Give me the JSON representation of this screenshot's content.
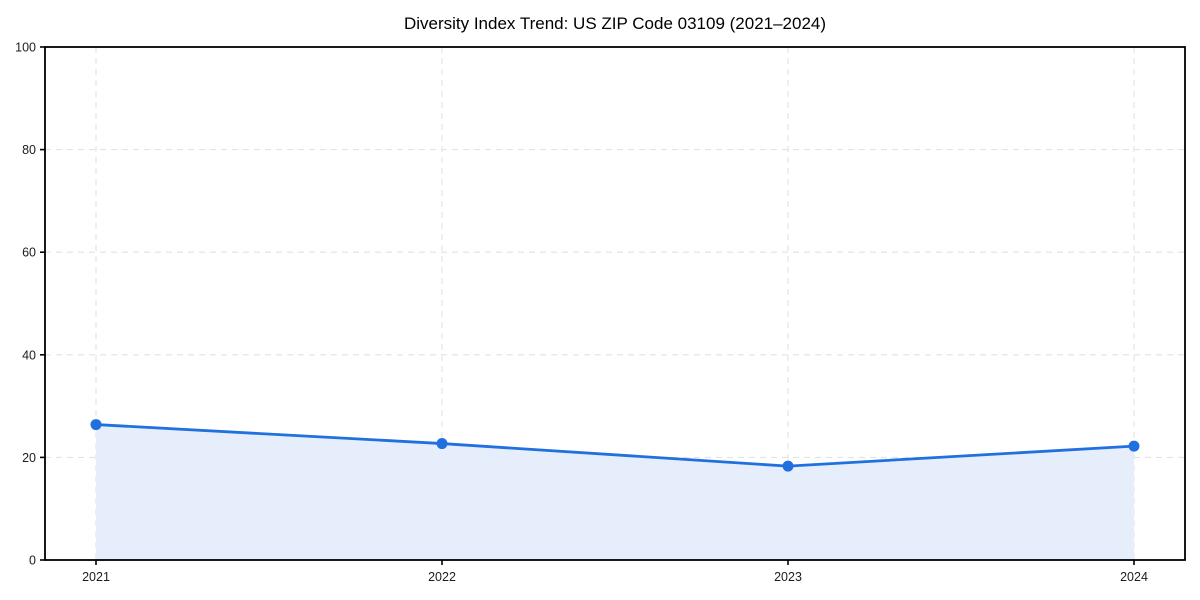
{
  "page": {
    "background": "#ffffff"
  },
  "chart_data": {
    "type": "line",
    "title": "Diversity Index Trend: US ZIP Code 03109 (2021–2024)",
    "categories": [
      "2021",
      "2022",
      "2023",
      "2024"
    ],
    "series": [
      {
        "name": "Diversity Index",
        "values": [
          26.4,
          22.7,
          18.3,
          22.2
        ]
      }
    ],
    "xlabel": "",
    "ylabel": "",
    "ylim": [
      0,
      100
    ],
    "yticks": [
      0,
      20,
      40,
      60,
      80,
      100
    ],
    "grid": "on",
    "grid_style": "dashed",
    "legend": "none",
    "marker": "circle",
    "fill_under_line": true,
    "colors": {
      "line": "#2170e0",
      "marker": "#2170e0",
      "area_fill": "#e6eefb",
      "gridline": "#e2e2e2",
      "axis": "#000000",
      "tick_label": "#1c1c1c",
      "title": "#000000"
    }
  }
}
